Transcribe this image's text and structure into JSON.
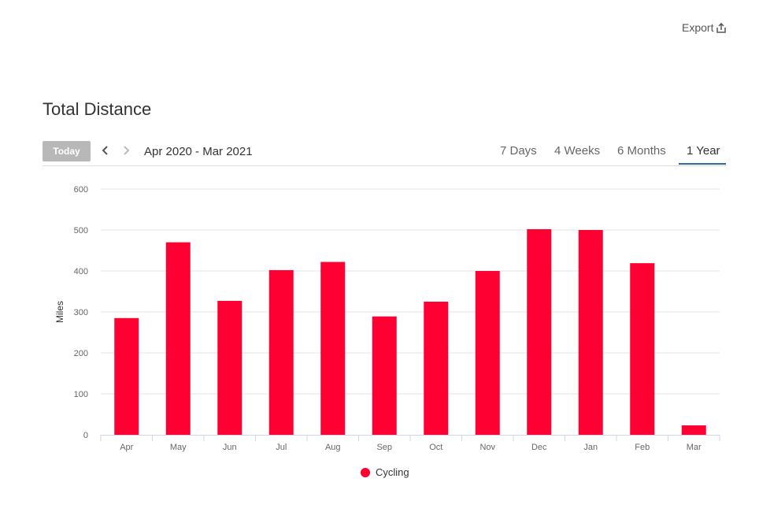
{
  "export_label": "Export",
  "page_title": "Total Distance",
  "toolbar": {
    "today_label": "Today",
    "date_range": "Apr 2020 - Mar 2021",
    "tabs": [
      "7 Days",
      "4 Weeks",
      "6 Months",
      "1 Year"
    ],
    "active_tab": "1 Year"
  },
  "icons": {
    "export": "export-icon",
    "prev": "chevron-left-icon",
    "next": "chevron-right-icon"
  },
  "colors": {
    "bar": "#ff0033",
    "active_tab_underline": "#2a6cb0",
    "today_button": "#b8b8b8"
  },
  "chart_data": {
    "type": "bar",
    "categories": [
      "Apr",
      "May",
      "Jun",
      "Jul",
      "Aug",
      "Sep",
      "Oct",
      "Nov",
      "Dec",
      "Jan",
      "Feb",
      "Mar"
    ],
    "series": [
      {
        "name": "Cycling",
        "values": [
          285,
          470,
          327,
          402,
          422,
          289,
          325,
          400,
          502,
          500,
          419,
          23
        ]
      }
    ],
    "xlabel": "",
    "ylabel": "Miles",
    "ylim": [
      0,
      600
    ],
    "yticks": [
      0,
      100,
      200,
      300,
      400,
      500,
      600
    ],
    "grid": true,
    "legend": "bottom-center"
  }
}
